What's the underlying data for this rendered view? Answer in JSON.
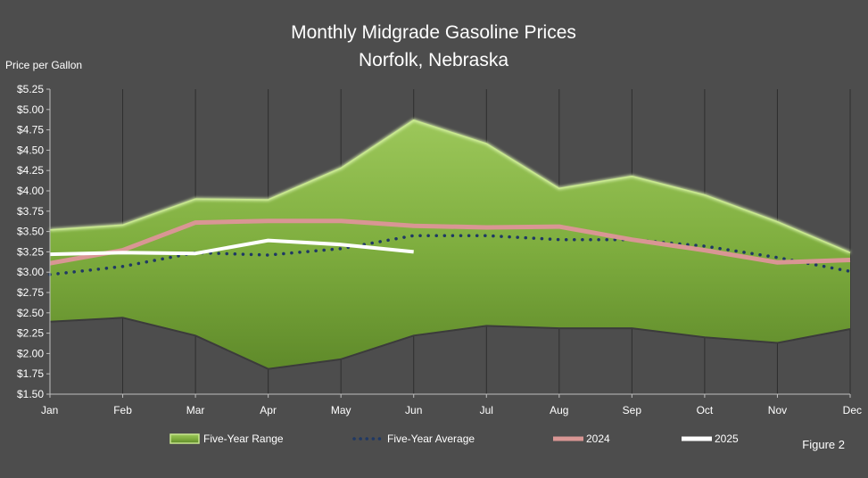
{
  "chart_data": {
    "type": "line",
    "title": "Monthly Midgrade Gasoline Prices",
    "subtitle": "Norfolk, Nebraska",
    "ylabel": "Price per Gallon",
    "xlabel": "",
    "categories": [
      "Jan",
      "Feb",
      "Mar",
      "Apr",
      "May",
      "Jun",
      "Jul",
      "Aug",
      "Sep",
      "Oct",
      "Nov",
      "Dec"
    ],
    "ylim": [
      1.5,
      5.25
    ],
    "yticks": [
      1.5,
      1.75,
      2.0,
      2.25,
      2.5,
      2.75,
      3.0,
      3.25,
      3.5,
      3.75,
      4.0,
      4.25,
      4.5,
      4.75,
      5.0,
      5.25
    ],
    "ytick_labels": [
      "$1.50",
      "$1.75",
      "$2.00",
      "$2.25",
      "$2.50",
      "$2.75",
      "$3.00",
      "$3.25",
      "$3.50",
      "$3.75",
      "$4.00",
      "$4.25",
      "$4.50",
      "$4.75",
      "$5.00",
      "$5.25"
    ],
    "grid": "vertical",
    "legend_position": "bottom",
    "range": {
      "name": "Five-Year Range",
      "color": "#8db84a",
      "high": [
        3.52,
        3.58,
        3.9,
        3.89,
        4.28,
        4.87,
        4.58,
        4.03,
        4.18,
        3.95,
        3.62,
        3.24
      ],
      "low": [
        2.39,
        2.44,
        2.22,
        1.81,
        1.93,
        2.22,
        2.34,
        2.31,
        2.31,
        2.2,
        2.13,
        2.3
      ]
    },
    "series": [
      {
        "name": "Five-Year Average",
        "color": "#1f3864",
        "style": "dotted",
        "values": [
          2.97,
          3.07,
          3.24,
          3.21,
          3.29,
          3.45,
          3.45,
          3.4,
          3.4,
          3.32,
          3.18,
          3.01
        ]
      },
      {
        "name": "2024",
        "color": "#d99694",
        "style": "solid",
        "values": [
          3.11,
          3.27,
          3.61,
          3.63,
          3.63,
          3.57,
          3.55,
          3.56,
          3.4,
          3.27,
          3.12,
          3.15
        ]
      },
      {
        "name": "2025",
        "color": "#ffffff",
        "style": "solid",
        "values": [
          3.22,
          3.24,
          3.23,
          3.39,
          3.34,
          3.25,
          null,
          null,
          null,
          null,
          null,
          null
        ]
      }
    ],
    "annotation": "Figure 2"
  }
}
